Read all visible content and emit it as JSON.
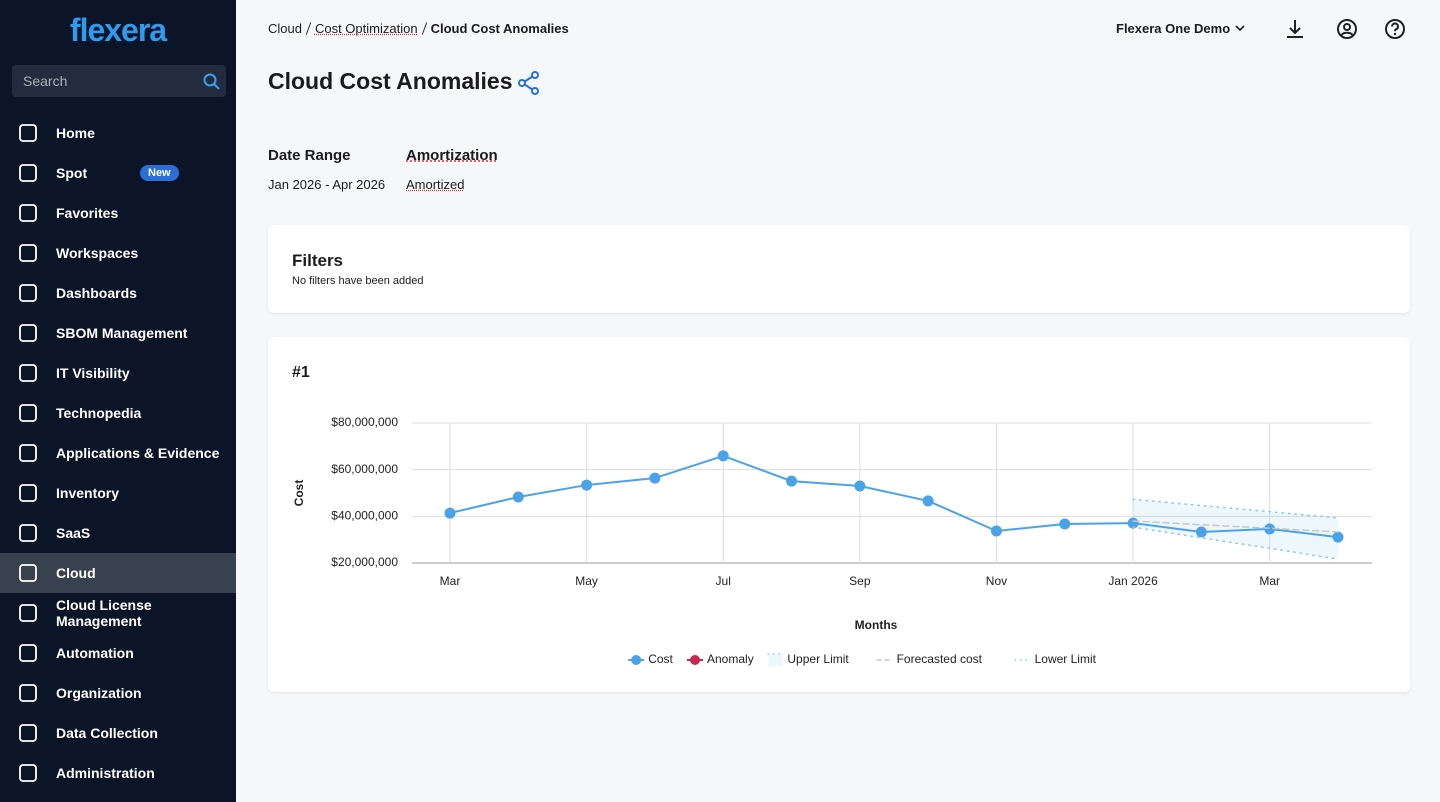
{
  "sidebar": {
    "logo": "flexera",
    "search_placeholder": "Search",
    "active": 11,
    "items": [
      {
        "label": "Home"
      },
      {
        "label": "Spot",
        "badge": "New"
      },
      {
        "label": "Favorites"
      },
      {
        "label": "Workspaces"
      },
      {
        "label": "Dashboards"
      },
      {
        "label": "SBOM Management"
      },
      {
        "label": "IT Visibility"
      },
      {
        "label": "Technopedia"
      },
      {
        "label": "Applications & Evidence"
      },
      {
        "label": "Inventory"
      },
      {
        "label": "SaaS"
      },
      {
        "label": "Cloud"
      },
      {
        "label": "Cloud License Management"
      },
      {
        "label": "Automation"
      },
      {
        "label": "Organization"
      },
      {
        "label": "Data Collection"
      },
      {
        "label": "Administration"
      }
    ]
  },
  "header": {
    "breadcrumb": [
      "Cloud",
      "Cost Optimization",
      "Cloud Cost Anomalies"
    ],
    "org": "Flexera One Demo",
    "title": "Cloud Cost Anomalies"
  },
  "settings": {
    "date_range_label": "Date Range",
    "date_range": "Jan 2026 - Apr 2026",
    "amortization_label": "Amortization",
    "amortization": "Amortized"
  },
  "filters": {
    "title": "Filters",
    "note": "No filters have been added"
  },
  "card_title": "#1",
  "chart_data": {
    "type": "line",
    "x_label": "Months",
    "y_label": "Cost",
    "categories": [
      "Mar",
      null,
      "May",
      null,
      "Jul",
      null,
      "Sep",
      null,
      "Nov",
      null,
      "Jan 2026",
      null,
      "Mar",
      null
    ],
    "ylim": [
      20000000,
      80000000
    ],
    "yticks": [
      {
        "value": 20000000,
        "label": "$20,000,000"
      },
      {
        "value": 40000000,
        "label": "$40,000,000"
      },
      {
        "value": 60000000,
        "label": "$60,000,000"
      },
      {
        "value": 80000000,
        "label": "$80,000,000"
      }
    ],
    "grid": true,
    "series": [
      {
        "name": "Cost",
        "color": "#4aa3e8",
        "style": "line-markers",
        "values": [
          41400000,
          48300000,
          53400000,
          56400000,
          65900000,
          55100000,
          53000000,
          46600000,
          33700000,
          36700000,
          37100000,
          33300000,
          34600000,
          31100000
        ]
      },
      {
        "name": "Anomaly",
        "color": "#c9294f",
        "style": "markers",
        "values": [
          null,
          null,
          null,
          null,
          null,
          null,
          null,
          null,
          null,
          null,
          null,
          null,
          null,
          null
        ]
      },
      {
        "name": "Upper Limit",
        "color": "#8cc8ee",
        "style": "dotted-area",
        "values": [
          null,
          null,
          null,
          null,
          null,
          null,
          null,
          null,
          null,
          null,
          47300000,
          44600000,
          42000000,
          39300000
        ]
      },
      {
        "name": "Forecasted cost",
        "color": "#c4c7cc",
        "style": "dashed",
        "values": [
          null,
          null,
          null,
          null,
          null,
          null,
          null,
          null,
          null,
          null,
          38000000,
          36400000,
          34900000,
          33300000
        ]
      },
      {
        "name": "Lower Limit",
        "color": "#8cc8ee",
        "style": "dotted",
        "values": [
          null,
          null,
          null,
          null,
          null,
          null,
          null,
          null,
          null,
          null,
          35400000,
          30800000,
          26300000,
          21700000
        ]
      }
    ]
  }
}
